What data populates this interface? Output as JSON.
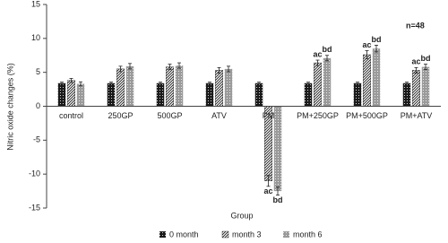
{
  "chart_data": {
    "type": "bar",
    "y_label": "Nitric oxide changes (%)",
    "x_label": "Group",
    "annotation": "n=48",
    "categories": [
      "control",
      "250GP",
      "500GP",
      "ATV",
      "PM",
      "PM+250GP",
      "PM+500GP",
      "PM+ATV"
    ],
    "series": [
      {
        "name": "0 month",
        "color": "#1a1a1a",
        "pattern": "dots",
        "values": [
          3.4,
          3.4,
          3.4,
          3.4,
          3.4,
          3.4,
          3.4,
          3.4
        ],
        "errors": [
          0.15,
          0.15,
          0.15,
          0.15,
          0.15,
          0.15,
          0.15,
          0.15
        ],
        "significance": [
          null,
          null,
          null,
          null,
          null,
          null,
          null,
          null
        ]
      },
      {
        "name": "month 3",
        "color": "#1a1a1a",
        "pattern": "hatch",
        "values": [
          3.8,
          5.5,
          5.8,
          5.3,
          -11.0,
          6.4,
          7.6,
          5.3
        ],
        "errors": [
          0.3,
          0.4,
          0.4,
          0.4,
          0.8,
          0.4,
          0.6,
          0.4
        ],
        "significance": [
          null,
          null,
          null,
          null,
          "ac",
          "ac",
          "ac",
          "ac"
        ]
      },
      {
        "name": "month 6",
        "color": "#9a9a9a",
        "pattern": "dots",
        "values": [
          3.3,
          5.9,
          6.0,
          5.5,
          -12.5,
          7.1,
          8.5,
          5.8
        ],
        "errors": [
          0.3,
          0.4,
          0.4,
          0.4,
          0.6,
          0.4,
          0.5,
          0.4
        ],
        "significance": [
          null,
          null,
          null,
          null,
          "bd",
          "bd",
          "bd",
          "bd"
        ]
      }
    ],
    "ylim": [
      -15,
      15
    ],
    "yticks": [
      -15,
      -10,
      -5,
      0,
      5,
      10,
      15
    ],
    "grid": false,
    "legend": "bottom"
  }
}
